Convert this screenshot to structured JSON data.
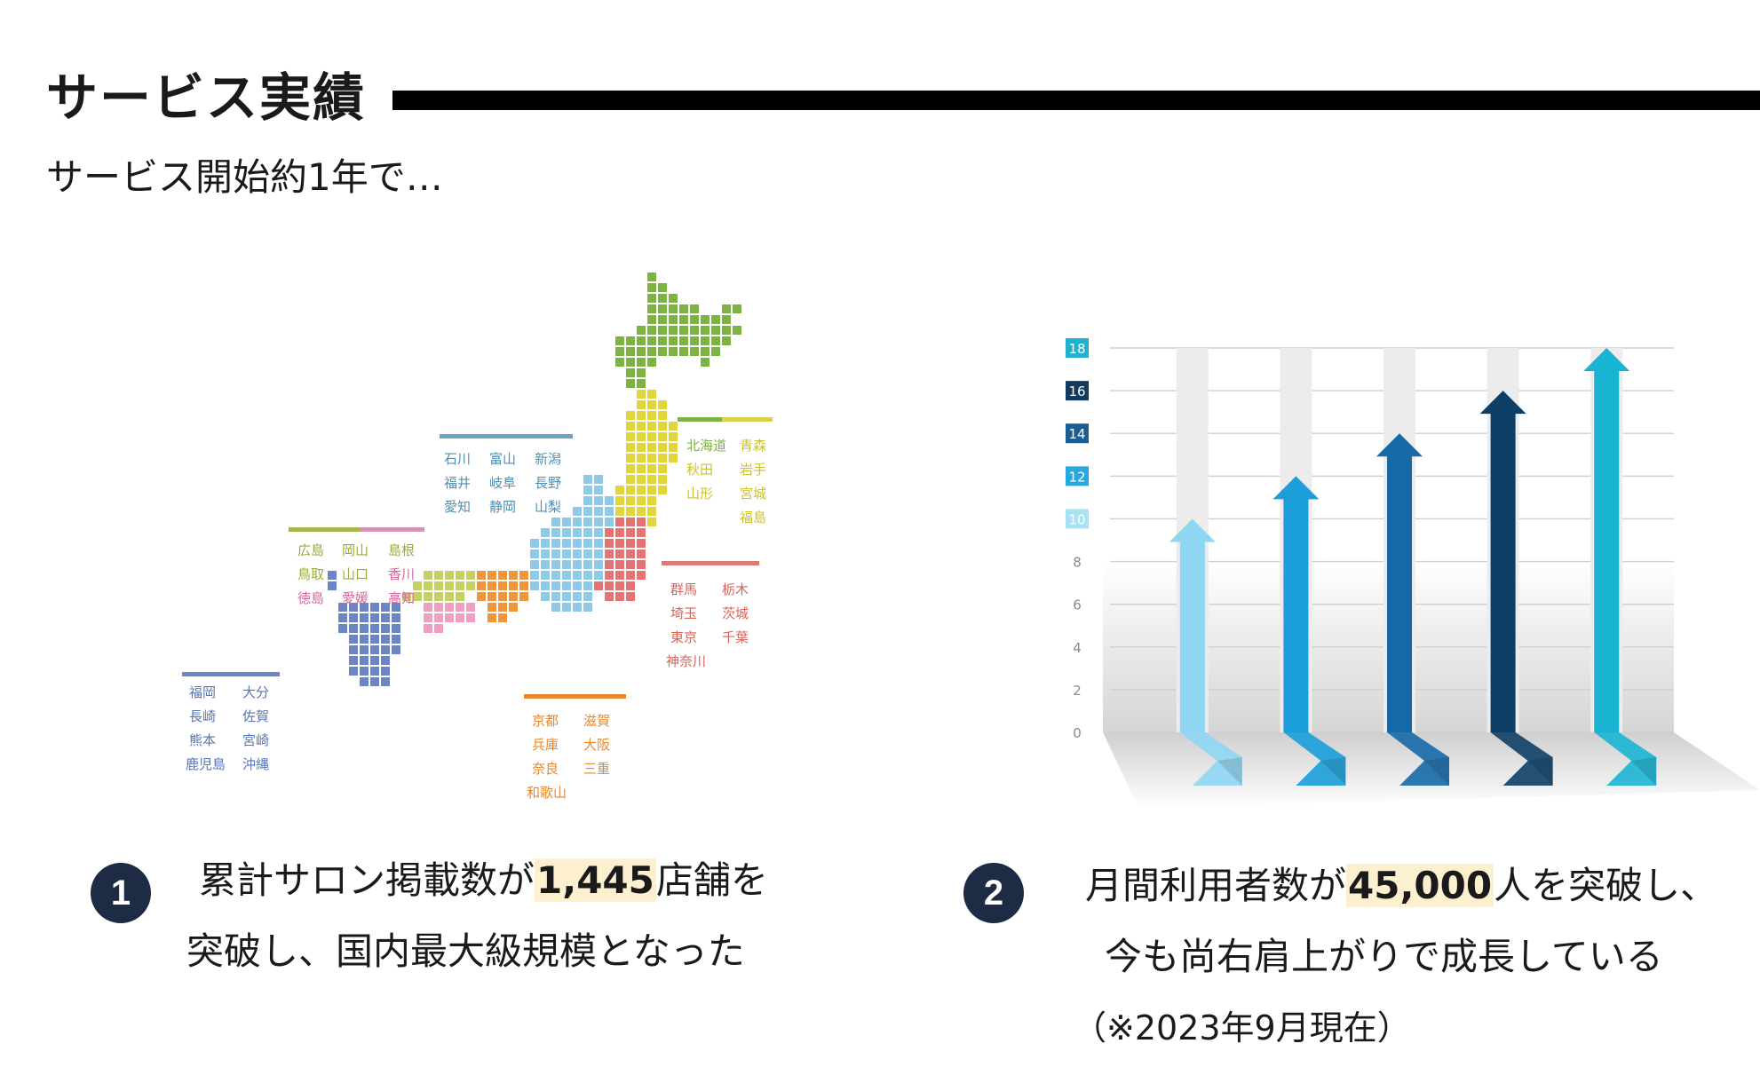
{
  "header": {
    "title": "サービス実績",
    "subtitle": "サービス開始約1年で…"
  },
  "map": {
    "region_labels": [
      {
        "text": "北海道",
        "color": "#7cb342"
      },
      {
        "text": "青森",
        "color": "#cdc22a"
      },
      {
        "text": "秋田",
        "color": "#cdc22a"
      },
      {
        "text": "岩手",
        "color": "#cdc22a"
      },
      {
        "text": "山形",
        "color": "#cdc22a"
      },
      {
        "text": "宮城",
        "color": "#cdc22a"
      },
      {
        "text": "福島",
        "color": "#cdc22a"
      },
      {
        "text": "石川",
        "color": "#4f8fb0"
      },
      {
        "text": "富山",
        "color": "#4f8fb0"
      },
      {
        "text": "新潟",
        "color": "#4f8fb0"
      },
      {
        "text": "福井",
        "color": "#4f8fb0"
      },
      {
        "text": "岐阜",
        "color": "#4f8fb0"
      },
      {
        "text": "長野",
        "color": "#4f8fb0"
      },
      {
        "text": "愛知",
        "color": "#4f8fb0"
      },
      {
        "text": "静岡",
        "color": "#4f8fb0"
      },
      {
        "text": "山梨",
        "color": "#4f8fb0"
      },
      {
        "text": "群馬",
        "color": "#d9645a"
      },
      {
        "text": "栃木",
        "color": "#d9645a"
      },
      {
        "text": "埼玉",
        "color": "#d9645a"
      },
      {
        "text": "茨城",
        "color": "#d9645a"
      },
      {
        "text": "東京",
        "color": "#d9645a"
      },
      {
        "text": "千葉",
        "color": "#d9645a"
      },
      {
        "text": "神奈川",
        "color": "#d9645a"
      },
      {
        "text": "広島",
        "color": "#9aab36"
      },
      {
        "text": "岡山",
        "color": "#9aab36"
      },
      {
        "text": "島根",
        "color": "#9aab36"
      },
      {
        "text": "鳥取",
        "color": "#9aab36"
      },
      {
        "text": "山口",
        "color": "#9aab36"
      },
      {
        "text": "香川",
        "color": "#d46a9c"
      },
      {
        "text": "徳島",
        "color": "#d46a9c"
      },
      {
        "text": "愛媛",
        "color": "#d46a9c"
      },
      {
        "text": "高知",
        "color": "#d46a9c"
      },
      {
        "text": "京都",
        "color": "#e8862a"
      },
      {
        "text": "滋賀",
        "color": "#e8862a"
      },
      {
        "text": "兵庫",
        "color": "#e8862a"
      },
      {
        "text": "大阪",
        "color": "#e8862a"
      },
      {
        "text": "奈良",
        "color": "#e8862a"
      },
      {
        "text": "三重",
        "color": "#e8862a"
      },
      {
        "text": "和歌山",
        "color": "#e8862a"
      },
      {
        "text": "福岡",
        "color": "#5874b4"
      },
      {
        "text": "大分",
        "color": "#5874b4"
      },
      {
        "text": "長崎",
        "color": "#5874b4"
      },
      {
        "text": "佐賀",
        "color": "#5874b4"
      },
      {
        "text": "熊本",
        "color": "#5874b4"
      },
      {
        "text": "宮崎",
        "color": "#5874b4"
      },
      {
        "text": "鹿児島",
        "color": "#5874b4"
      },
      {
        "text": "沖縄",
        "color": "#5874b4"
      }
    ]
  },
  "chart_data": {
    "type": "bar",
    "y_ticks": [
      "0",
      "2",
      "4",
      "6",
      "8",
      "10",
      "12",
      "14",
      "16",
      "18"
    ],
    "ylim": [
      0,
      18
    ],
    "values": [
      10,
      12,
      14,
      16,
      18
    ],
    "colors": [
      "#8fd6f3",
      "#1b9ed9",
      "#1669a8",
      "#0d3f66",
      "#19b4d2"
    ],
    "grid": true
  },
  "stats": [
    {
      "number": "1",
      "line1_pre": "累計サロン掲載数が",
      "line1_highlight": "1,445",
      "line1_post": "店舗を",
      "line2": "突破し、国内最大級規模となった"
    },
    {
      "number": "2",
      "line1_pre": "月間利用者数が",
      "line1_highlight": "45,000",
      "line1_post": "人を突破し、",
      "line2": "今も尚右肩上がりで成長している",
      "line3": "（※2023年9月現在）"
    }
  ]
}
